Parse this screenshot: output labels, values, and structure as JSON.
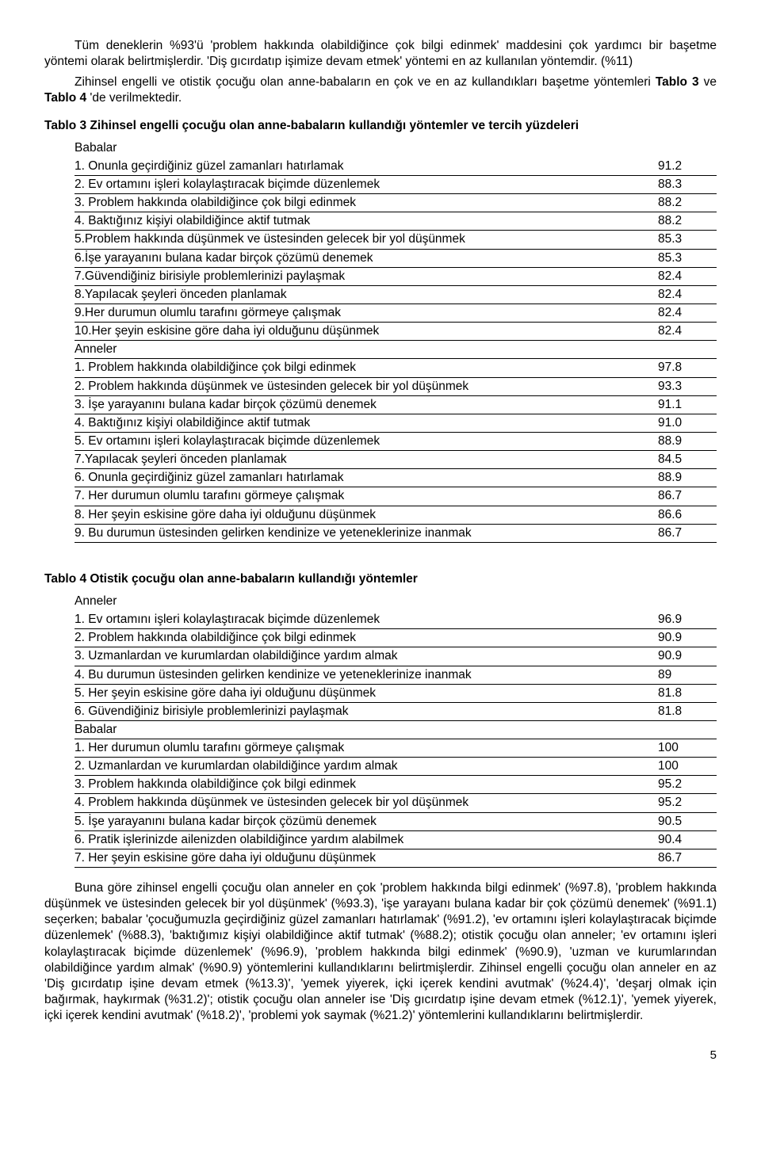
{
  "intro": {
    "p1": "Tüm deneklerin %93'ü 'problem hakkında olabildiğince çok bilgi edinmek' maddesini çok yardımcı bir başetme yöntemi olarak belirtmişlerdir. 'Diş gıcırdatıp işimize devam etmek' yöntemi en az kullanılan yöntemdir. (%11)",
    "p2_pre": "Zihinsel engelli ve otistik çocuğu olan anne-babaların en çok ve en az kullandıkları başetme yöntemleri ",
    "p2_b1": "Tablo 3",
    "p2_mid": " ve  ",
    "p2_b2": "Tablo 4",
    "p2_post": " 'de verilmektedir."
  },
  "table3": {
    "title": "Tablo 3 Zihinsel engelli çocuğu olan anne-babaların kullandığı yöntemler ve tercih yüzdeleri",
    "group1": "Babalar",
    "rows1": [
      {
        "label": "1. Onunla geçirdiğiniz güzel zamanları hatırlamak",
        "val": "91.2"
      },
      {
        "label": "2. Ev ortamını işleri kolaylaştıracak biçimde düzenlemek",
        "val": "88.3"
      },
      {
        "label": "3. Problem hakkında olabildiğince çok bilgi edinmek",
        "val": "88.2"
      },
      {
        "label": "4. Baktığınız kişiyi olabildiğince aktif tutmak",
        "val": "88.2"
      },
      {
        "label": "5.Problem hakkında düşünmek ve üstesinden gelecek bir yol düşünmek",
        "val": "85.3"
      },
      {
        "label": "6.İşe yarayanını bulana kadar birçok çözümü denemek",
        "val": "85.3"
      },
      {
        "label": "7.Güvendiğiniz birisiyle problemlerinizi paylaşmak",
        "val": "82.4"
      },
      {
        "label": "8.Yapılacak şeyleri önceden planlamak",
        "val": "82.4"
      },
      {
        "label": "9.Her durumun olumlu  tarafını görmeye çalışmak",
        "val": "82.4"
      },
      {
        "label": "10.Her şeyin eskisine göre daha iyi olduğunu düşünmek",
        "val": "82.4"
      }
    ],
    "group2": "Anneler",
    "rows2": [
      {
        "label": "1. Problem hakkında olabildiğince çok bilgi edinmek",
        "val": "97.8"
      },
      {
        "label": "2. Problem hakkında düşünmek ve üstesinden gelecek bir yol düşünmek",
        "val": "93.3"
      },
      {
        "label": "3. İşe yarayanını bulana kadar birçok çözümü denemek",
        "val": "91.1"
      },
      {
        "label": "4. Baktığınız kişiyi olabildiğince aktif tutmak",
        "val": "91.0"
      },
      {
        "label": "5. Ev ortamını işleri kolaylaştıracak biçimde düzenlemek",
        "val": "88.9"
      },
      {
        "label": "7.Yapılacak şeyleri önceden planlamak",
        "val": "84.5"
      },
      {
        "label": "6. Onunla geçirdiğiniz güzel zamanları hatırlamak",
        "val": "88.9"
      },
      {
        "label": "7. Her durumun olumlu  tarafını görmeye çalışmak",
        "val": "86.7"
      },
      {
        "label": "8. Her şeyin eskisine göre daha iyi olduğunu düşünmek",
        "val": "86.6"
      },
      {
        "label": "9. Bu durumun üstesinden gelirken kendinize ve yeteneklerinize inanmak",
        "val": "86.7"
      }
    ]
  },
  "table4": {
    "title": "Tablo 4 Otistik çocuğu olan anne-babaların kullandığı yöntemler",
    "group1": "Anneler",
    "rows1": [
      {
        "label": "1. Ev ortamını işleri kolaylaştıracak biçimde düzenlemek",
        "val": "96.9"
      },
      {
        "label": "2. Problem hakkında olabildiğince çok bilgi edinmek",
        "val": "90.9"
      },
      {
        "label": "3. Uzmanlardan ve kurumlardan olabildiğince yardım almak",
        "val": "90.9"
      },
      {
        "label": "4. Bu durumun üstesinden gelirken kendinize ve yeteneklerinize inanmak",
        "val": "89"
      },
      {
        "label": "5. Her şeyin eskisine göre daha iyi olduğunu düşünmek",
        "val": "81.8"
      },
      {
        "label": "6. Güvendiğiniz birisiyle problemlerinizi paylaşmak",
        "val": "81.8"
      }
    ],
    "group2": "Babalar",
    "rows2": [
      {
        "label": "1. Her durumun olumlu  tarafını görmeye çalışmak",
        "val": "100"
      },
      {
        "label": "2. Uzmanlardan ve kurumlardan olabildiğince yardım almak",
        "val": "100"
      },
      {
        "label": "3. Problem hakkında olabildiğince çok bilgi edinmek",
        "val": "95.2"
      },
      {
        "label": "4. Problem hakkında düşünmek ve üstesinden gelecek bir yol düşünmek",
        "val": "95.2"
      },
      {
        "label": "5. İşe yarayanını bulana kadar birçok çözümü denemek",
        "val": "90.5"
      },
      {
        "label": "6. Pratik işlerinizde ailenizden olabildiğince yardım alabilmek",
        "val": "90.4"
      },
      {
        "label": "7. Her şeyin eskisine göre daha iyi olduğunu düşünmek",
        "val": "86.7"
      }
    ]
  },
  "concl": {
    "p": "Buna göre zihinsel engelli çocuğu olan anneler en çok 'problem hakkında bilgi edinmek' (%97.8), 'problem hakkında düşünmek ve üstesinden gelecek bir yol düşünmek' (%93.3), 'işe yarayanı bulana kadar bir çok çözümü denemek' (%91.1) seçerken; babalar 'çocuğumuzla geçirdiğiniz güzel zamanları hatırlamak' (%91.2), 'ev ortamını işleri kolaylaştıracak biçimde düzenlemek' (%88.3), 'baktığımız kişiyi olabildiğince aktif tutmak' (%88.2); otistik çocuğu olan anneler; 'ev ortamını işleri kolaylaştıracak biçimde düzenlemek' (%96.9), 'problem hakkında bilgi edinmek' (%90.9), 'uzman ve kurumlarından olabildiğince yardım almak' (%90.9) yöntemlerini kullandıklarını belirtmişlerdir. Zihinsel engelli çocuğu olan anneler en az 'Diş gıcırdatıp işine devam etmek (%13.3)', 'yemek yiyerek, içki içerek kendini avutmak' (%24.4)', 'deşarj olmak için bağırmak, haykırmak (%31.2)'; otistik çocuğu olan anneler ise 'Diş gıcırdatıp işine devam etmek (%12.1)', 'yemek yiyerek, içki içerek kendini avutmak' (%18.2)', 'problemi yok saymak (%21.2)' yöntemlerini kullandıklarını belirtmişlerdir."
  },
  "page_num": "5"
}
